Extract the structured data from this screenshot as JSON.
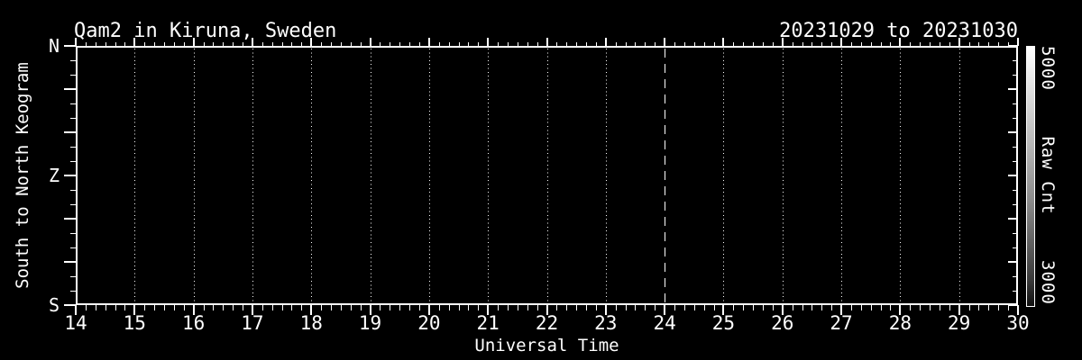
{
  "colors": {
    "background": "#000000",
    "foreground": "#ffffff"
  },
  "chart_data": {
    "type": "heatmap",
    "title": "Qam2 in Kiruna, Sweden",
    "date_range": "20231029 to 20231030",
    "xlabel": "Universal Time",
    "ylabel": "South to North Keogram",
    "xlim": [
      14,
      30
    ],
    "x_major_ticks": [
      14,
      15,
      16,
      17,
      18,
      19,
      20,
      21,
      22,
      23,
      24,
      25,
      26,
      27,
      28,
      29,
      30
    ],
    "x_minor_divisions": 6,
    "y_axis": {
      "major_tick_count": 7,
      "minor_ticks_per_interval": 2,
      "labels": [
        {
          "text": "N",
          "position": "top"
        },
        {
          "text": "Z",
          "position": "middle"
        },
        {
          "text": "S",
          "position": "bottom"
        }
      ]
    },
    "gridlines": {
      "style": "dotted",
      "hours": [
        15,
        16,
        17,
        18,
        19,
        20,
        21,
        22,
        23,
        25,
        26,
        27,
        28,
        29
      ]
    },
    "midnight_line": {
      "hour": 24,
      "style": "dashed"
    },
    "plot_content": "empty — no keogram intensity data visible, plot interior is solid black",
    "colorbar": {
      "title": "Raw Cnt",
      "max_label": "5000",
      "min_label": "3000",
      "gradient_top": "#ffffff",
      "gradient_bottom": "#101010"
    }
  }
}
